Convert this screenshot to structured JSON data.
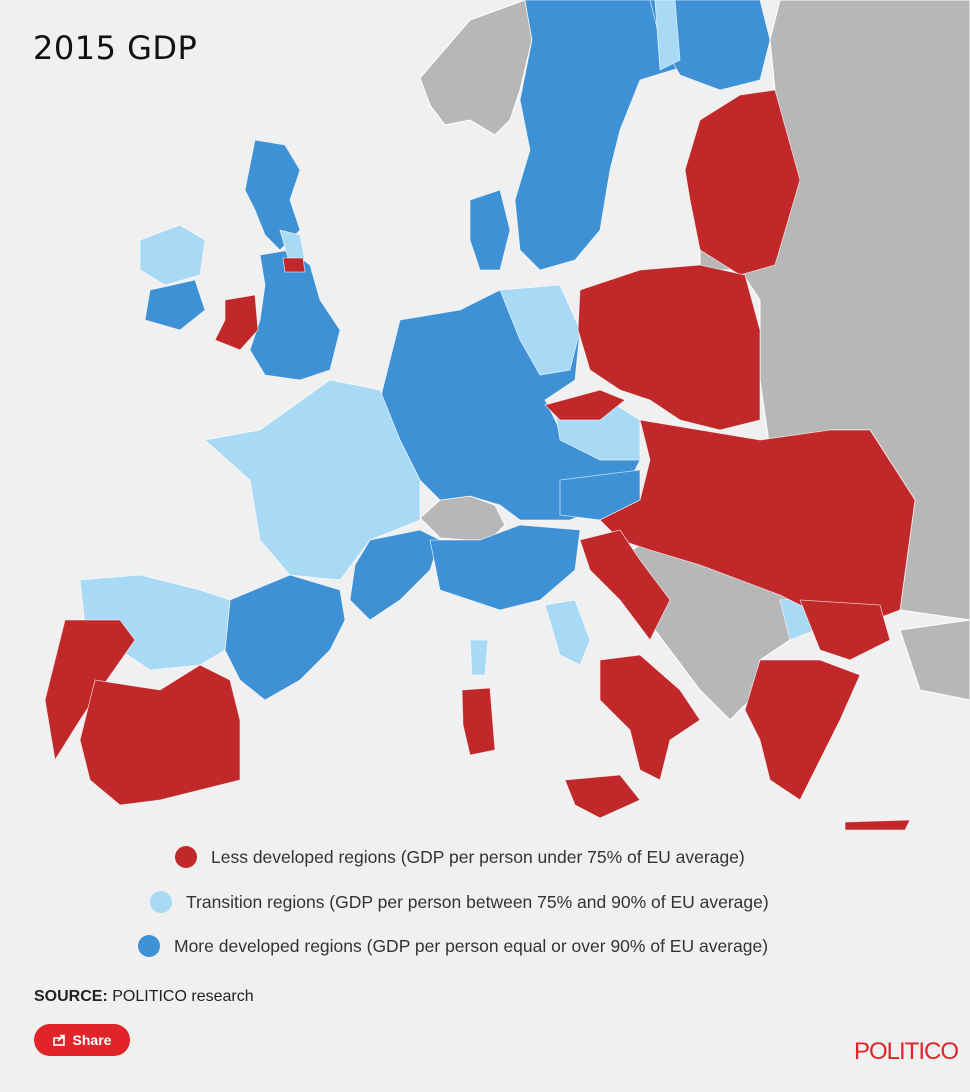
{
  "title": "2015 GDP",
  "colors": {
    "less_developed": "#c0282a",
    "transition": "#a8d9f5",
    "more_developed": "#3e91d4",
    "non_eu_land": "#b7b7b7",
    "sea": "#f0f0f0",
    "brand": "#e0242a"
  },
  "legend": [
    {
      "color": "#c0282a",
      "label": "Less developed regions (GDP per person under 75% of EU average)"
    },
    {
      "color": "#a8d9f5",
      "label": "Transition regions (GDP per person between 75% and 90% of EU average)"
    },
    {
      "color": "#3e91d4",
      "label": "More developed regions (GDP per person equal or over 90% of EU average)"
    }
  ],
  "source": {
    "label": "SOURCE:",
    "text": "POLITICO research"
  },
  "share": {
    "label": "Share",
    "icon": "share-icon"
  },
  "brand": "POLITICO"
}
